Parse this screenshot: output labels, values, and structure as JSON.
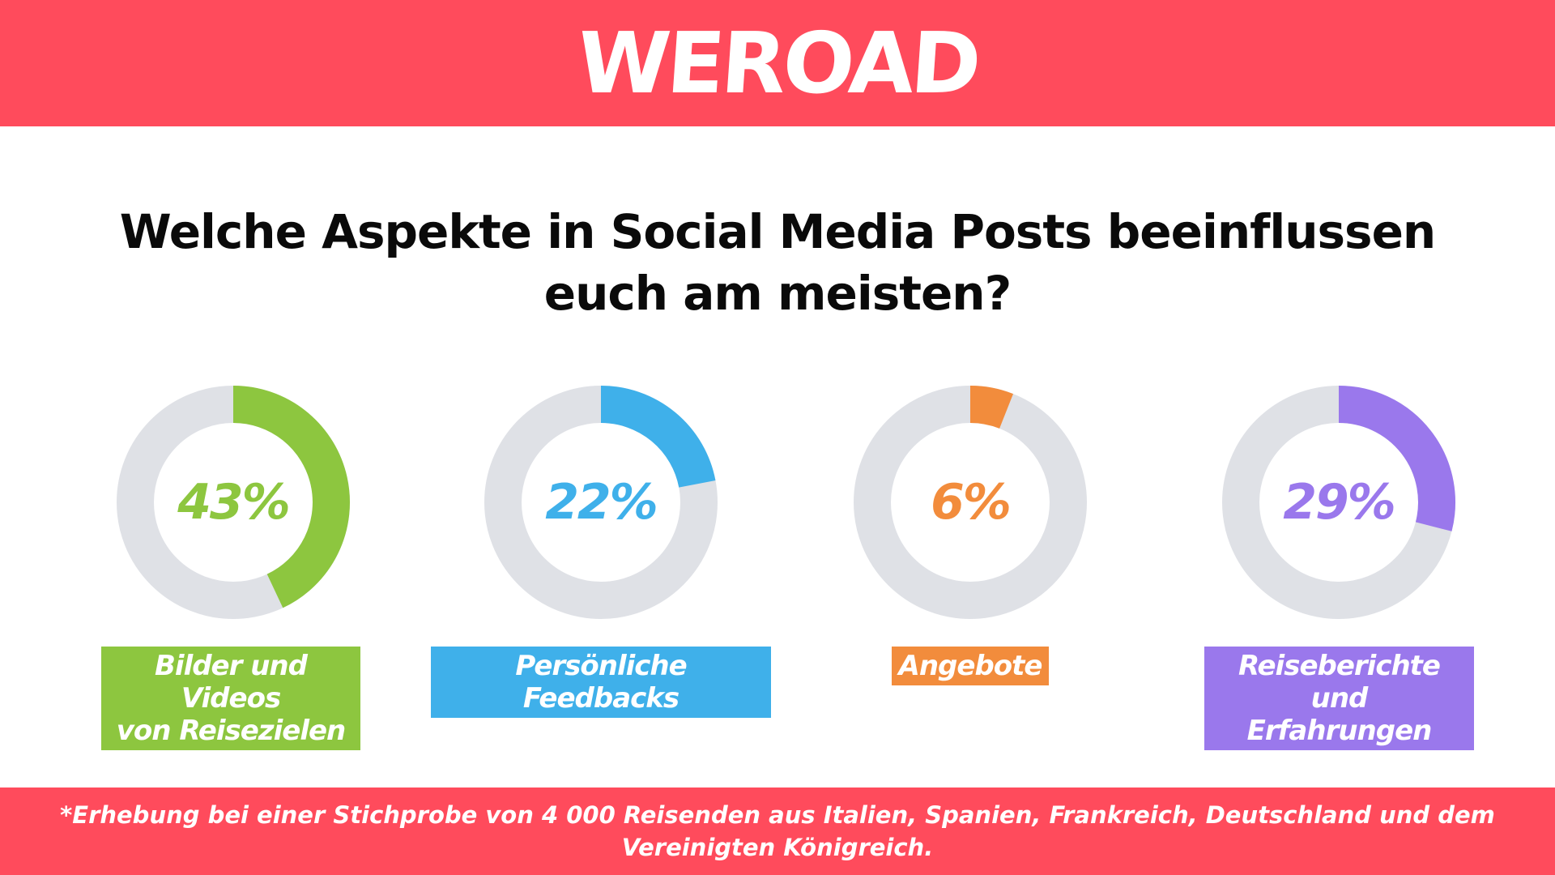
{
  "brand": {
    "logo": "WEROAD"
  },
  "colors": {
    "header_bg": "#ff4b5c",
    "track": "#dfe1e6",
    "green": "#8dc63f",
    "blue": "#3fb0ea",
    "orange": "#f28c3c",
    "purple": "#9a78ec"
  },
  "question": {
    "line1": "Welche Aspekte in Social Media Posts beeinflussen",
    "line2": "euch am meisten?"
  },
  "chart_data": {
    "type": "pie",
    "style": "donut",
    "title": "Welche Aspekte in Social Media Posts beeinflussen euch am meisten?",
    "unit": "%",
    "series": [
      {
        "name": "Bilder und Videos von Reisezielen",
        "value": 43,
        "label": "43%",
        "color": "#8dc63f",
        "label_lines": [
          "Bilder und Videos",
          "von Reisezielen"
        ]
      },
      {
        "name": "Persönliche Feedbacks",
        "value": 22,
        "label": "22%",
        "color": "#3fb0ea",
        "label_lines": [
          "Persönliche Feedbacks"
        ]
      },
      {
        "name": "Angebote",
        "value": 6,
        "label": "6%",
        "color": "#f28c3c",
        "label_lines": [
          "Angebote"
        ]
      },
      {
        "name": "Reiseberichte und Erfahrungen",
        "value": 29,
        "label": "29%",
        "color": "#9a78ec",
        "label_lines": [
          "Reiseberichte und",
          "Erfahrungen"
        ]
      }
    ]
  },
  "footer": {
    "line1": "*Erhebung bei einer Stichprobe von 4 000 Reisenden aus Italien, Spanien, Frankreich, Deutschland und dem",
    "line2": "Vereinigten Königreich."
  }
}
